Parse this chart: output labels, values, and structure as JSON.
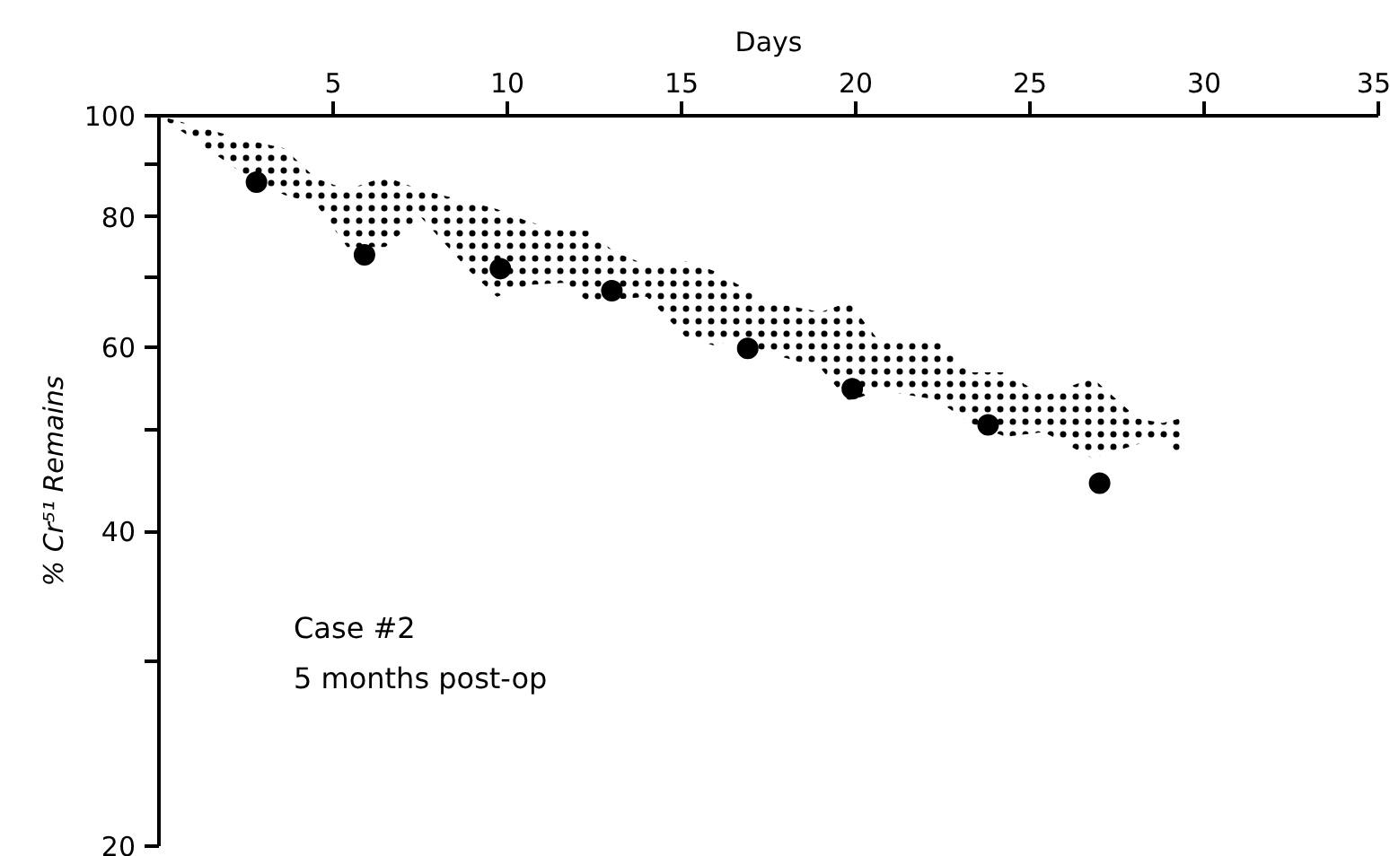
{
  "chart_data": {
    "type": "scatter",
    "xlabel": "Days",
    "ylabel": "% Cr⁵¹ Remains",
    "xlim": [
      0,
      35
    ],
    "xticks": [
      5,
      10,
      15,
      20,
      25,
      30,
      35
    ],
    "ylim": [
      20,
      100
    ],
    "yticks": [
      20,
      {
        "value": 30,
        "label": null
      },
      40,
      {
        "value": 50,
        "label": null
      },
      60,
      {
        "value": 70,
        "label": null
      },
      80,
      {
        "value": 90,
        "label": null
      },
      100
    ],
    "log": "y",
    "grid": false,
    "marker": "circle",
    "annotations": [
      "Case #2",
      "5 months post-op"
    ],
    "series": [
      {
        "type": "line",
        "color": "#000000",
        "x": [
          0,
          2.4,
          3.6,
          4.5,
          5.4,
          6.5,
          7.5,
          8.9,
          9.7,
          10.6,
          11.6,
          12.3,
          13.1,
          14.0,
          15.1,
          15.9,
          16.8,
          17.3,
          19.0,
          19.8,
          20.7,
          22.3,
          23.3,
          24.3,
          25.4,
          26.8,
          28.1,
          28.8,
          29.4
        ],
        "values": [
          null,
          null,
          null,
          null,
          null,
          null,
          null,
          null,
          null,
          null,
          null,
          null,
          null,
          null,
          null,
          null,
          null,
          null,
          null,
          null,
          null,
          null,
          null,
          null,
          null,
          null,
          null,
          null,
          null
        ],
        "upper": [
          100,
          95.0,
          93.1,
          87.1,
          85.0,
          87.4,
          85.0,
          82.7,
          81.4,
          79.2,
          77.6,
          77.6,
          74.0,
          72.0,
          72.6,
          71.1,
          68.4,
          66.5,
          64.9,
          66.3,
          60.7,
          61.2,
          56.8,
          56.8,
          53.9,
          56.1,
          51.3,
          50.8,
          51.4
        ],
        "lower": [
          100,
          88.1,
          84.0,
          82.4,
          74.9,
          74.9,
          80.1,
          71.1,
          67.1,
          68.9,
          69.2,
          66.5,
          66.7,
          67.1,
          61.5,
          60.3,
          61.2,
          59.6,
          57.3,
          53.3,
          54.6,
          53.5,
          50.8,
          49.3,
          49.8,
          47.0,
          48.5,
          49.3,
          47.0
        ]
      },
      {
        "color": "#000000",
        "x": [
          2.8,
          5.9,
          9.8,
          13.0,
          16.9,
          19.9,
          23.8,
          27.0
        ],
        "values": [
          86.4,
          73.6,
          71.4,
          68.0,
          59.9,
          54.8,
          50.6,
          44.5
        ]
      }
    ]
  }
}
